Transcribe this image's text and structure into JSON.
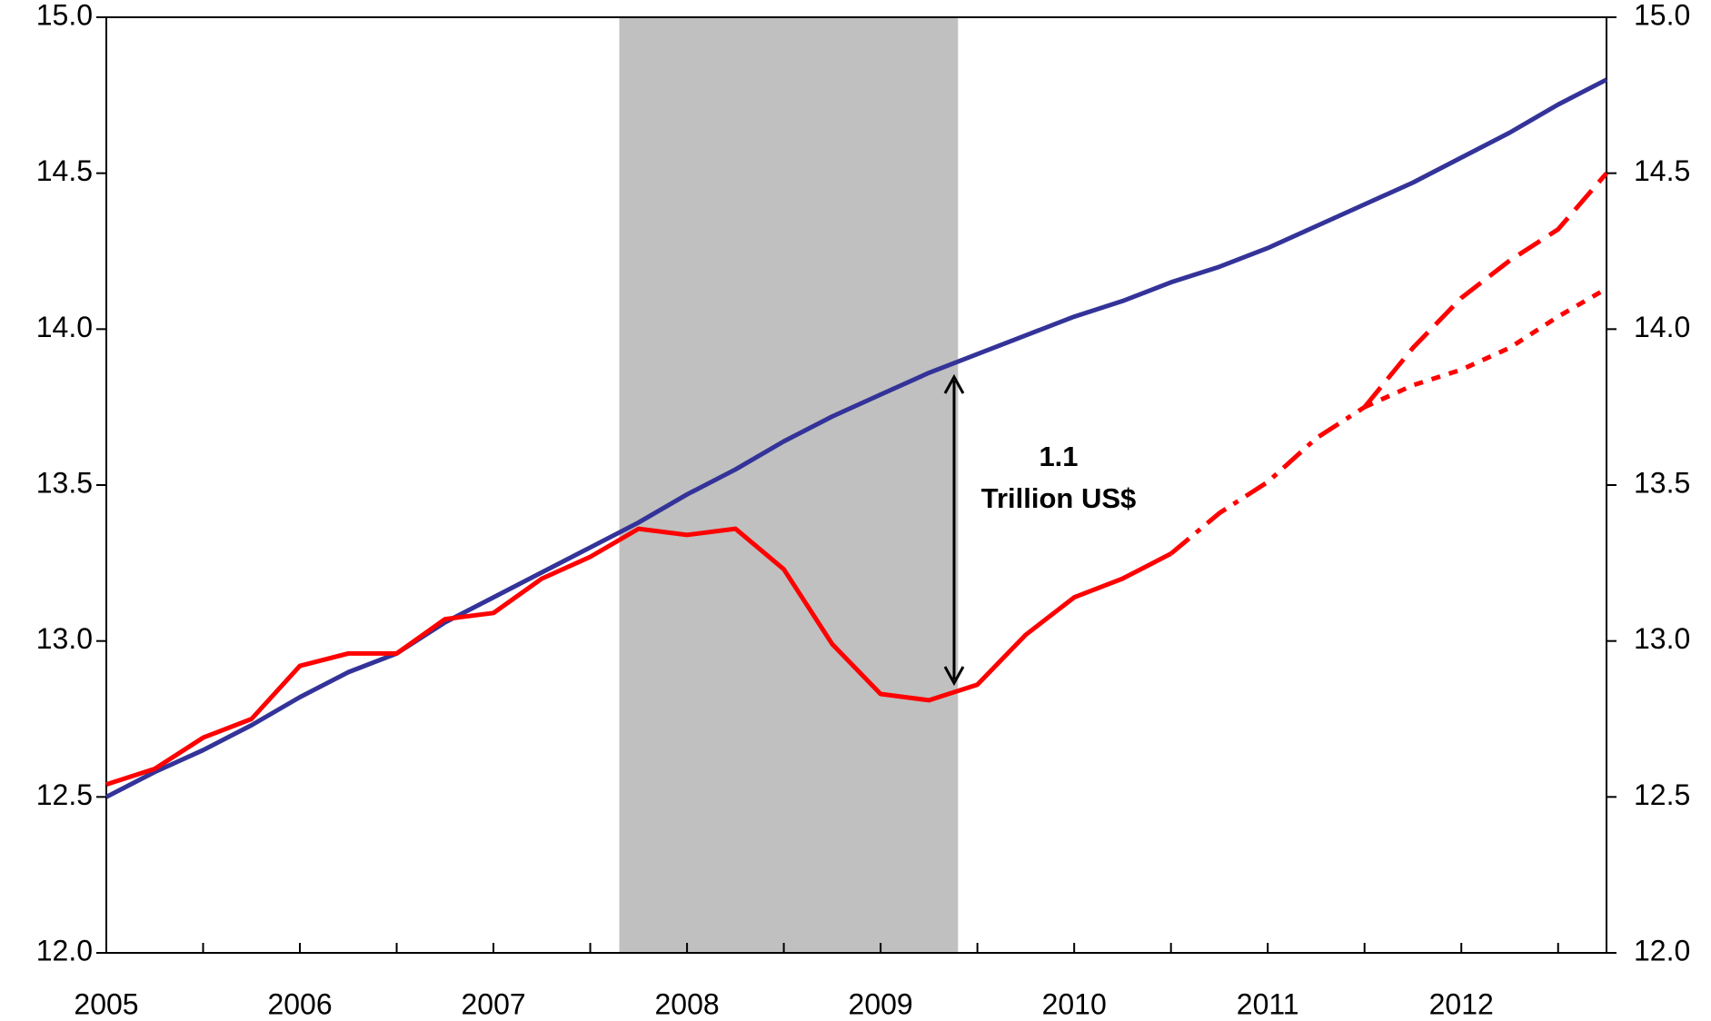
{
  "chart_data": {
    "type": "line",
    "xlim": [
      2005,
      2012.75
    ],
    "xticks": [
      2005,
      2006,
      2007,
      2008,
      2009,
      2010,
      2011,
      2012
    ],
    "xminorticks": [
      2005.5,
      2006.5,
      2007.5,
      2008.5,
      2009.5,
      2010.5,
      2011.5,
      2012.5
    ],
    "ylim": [
      12,
      15
    ],
    "yticks": [
      {
        "value": 12,
        "label": "12.0"
      },
      {
        "value": 12.5,
        "label": "12.5"
      },
      {
        "value": 13,
        "label": "13.0"
      },
      {
        "value": 13.5,
        "label": "13.5"
      },
      {
        "value": 14,
        "label": "14.0"
      },
      {
        "value": 14.5,
        "label": "14.5"
      },
      {
        "value": 15,
        "label": "15.0"
      }
    ],
    "y2lim": [
      12,
      15
    ],
    "y2ticks": [
      {
        "value": 12,
        "label": "12.0"
      },
      {
        "value": 12.5,
        "label": "12.5"
      },
      {
        "value": 13,
        "label": "13.0"
      },
      {
        "value": 13.5,
        "label": "13.5"
      },
      {
        "value": 14,
        "label": "14.0"
      },
      {
        "value": 14.5,
        "label": "14.5"
      },
      {
        "value": 15,
        "label": "15.0"
      }
    ],
    "shade": {
      "x": [
        2007.65,
        2009.4
      ],
      "color": "#c0c0c0"
    },
    "annotations": [
      "1.1",
      "Trillion US$"
    ],
    "x": [
      2005,
      2005.25,
      2005.5,
      2005.75,
      2006,
      2006.25,
      2006.5,
      2006.75,
      2007,
      2007.25,
      2007.5,
      2007.75,
      2008,
      2008.25,
      2008.5,
      2008.75,
      2009,
      2009.25,
      2009.5,
      2009.75,
      2010,
      2010.25,
      2010.5,
      2010.75,
      2011,
      2011.25,
      2011.5,
      2011.75,
      2012,
      2012.25,
      2012.5,
      2012.75
    ],
    "series": [
      {
        "color": "#333399",
        "dash": "solid",
        "values": [
          12.5,
          12.58,
          12.65,
          12.73,
          12.82,
          12.9,
          12.96,
          13.06,
          13.14,
          13.22,
          13.3,
          13.38,
          13.47,
          13.55,
          13.64,
          13.72,
          13.79,
          13.86,
          13.92,
          13.98,
          14.04,
          14.09,
          14.15,
          14.2,
          14.26,
          14.33,
          14.4,
          14.47,
          14.55,
          14.63,
          14.72,
          14.8
        ]
      },
      {
        "color": "#ff0000",
        "dash": "solid",
        "values": [
          12.54,
          12.59,
          12.69,
          12.75,
          12.92,
          12.96,
          12.96,
          13.07,
          13.09,
          13.2,
          13.27,
          13.36,
          13.34,
          13.36,
          13.23,
          12.99,
          12.83,
          12.81,
          12.86,
          13.02,
          13.14,
          13.2,
          13.28,
          null,
          null,
          null,
          null,
          null,
          null,
          null,
          null,
          null
        ]
      },
      {
        "color": "#ff0000",
        "dash": "dashdot",
        "values": [
          null,
          null,
          null,
          null,
          null,
          null,
          null,
          null,
          null,
          null,
          null,
          null,
          null,
          null,
          null,
          null,
          null,
          null,
          null,
          null,
          null,
          null,
          13.28,
          13.41,
          13.51,
          13.65,
          13.75,
          null,
          null,
          null,
          null,
          null
        ]
      },
      {
        "color": "#ff0000",
        "dash": "dash",
        "values": [
          null,
          null,
          null,
          null,
          null,
          null,
          null,
          null,
          null,
          null,
          null,
          null,
          null,
          null,
          null,
          null,
          null,
          null,
          null,
          null,
          null,
          null,
          null,
          null,
          null,
          null,
          13.75,
          13.94,
          14.1,
          14.22,
          14.32,
          14.5
        ]
      },
      {
        "color": "#ff0000",
        "dash": "dot",
        "values": [
          null,
          null,
          null,
          null,
          null,
          null,
          null,
          null,
          null,
          null,
          null,
          null,
          null,
          null,
          null,
          null,
          null,
          null,
          null,
          null,
          null,
          null,
          null,
          null,
          null,
          null,
          13.75,
          13.82,
          13.87,
          13.94,
          14.04,
          14.13
        ]
      }
    ]
  }
}
